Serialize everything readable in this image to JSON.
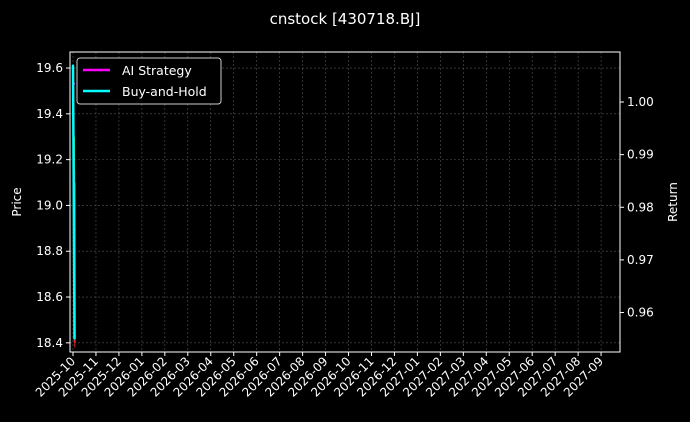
{
  "chart_data": {
    "type": "line",
    "title": "cnstock [430718.BJ]",
    "ylabel_left": "Price",
    "ylabel_right": "Return",
    "ylim_left": [
      18.36,
      19.67
    ],
    "ylim_right": [
      0.9525,
      1.0095
    ],
    "yticks_left": [
      "18.4",
      "18.6",
      "18.8",
      "19.0",
      "19.2",
      "19.4",
      "19.6"
    ],
    "yticks_right": [
      "0.96",
      "0.97",
      "0.98",
      "0.99",
      "1.00"
    ],
    "xticks": [
      "2025-10",
      "2025-11",
      "2025-12",
      "2026-01",
      "2026-02",
      "2026-03",
      "2026-04",
      "2026-05",
      "2026-06",
      "2026-07",
      "2026-08",
      "2026-09",
      "2026-10",
      "2026-11",
      "2026-12",
      "2027-01",
      "2027-02",
      "2027-03",
      "2027-04",
      "2027-05",
      "2027-06",
      "2027-07",
      "2027-08",
      "2027-09"
    ],
    "grid": true,
    "legend_placement": "upper-left",
    "candles": [
      {
        "day": 0,
        "open": 18.8,
        "close": 19.3,
        "high": 19.3,
        "low": 18.75,
        "color": "#2ca02c"
      },
      {
        "day": 1,
        "open": 19.1,
        "close": 18.4,
        "high": 19.15,
        "low": 18.38,
        "color": "#d62728"
      }
    ],
    "series": [
      {
        "name": "AI Strategy",
        "color": "#ff00ff",
        "days": [
          0,
          1,
          2
        ],
        "values": [
          1.0035,
          1.0035,
          1.0035
        ]
      },
      {
        "name": "Buy-and-Hold",
        "color": "#00ffff",
        "days": [
          0,
          1,
          2
        ],
        "values": [
          1.007,
          0.982,
          0.955
        ]
      }
    ]
  }
}
